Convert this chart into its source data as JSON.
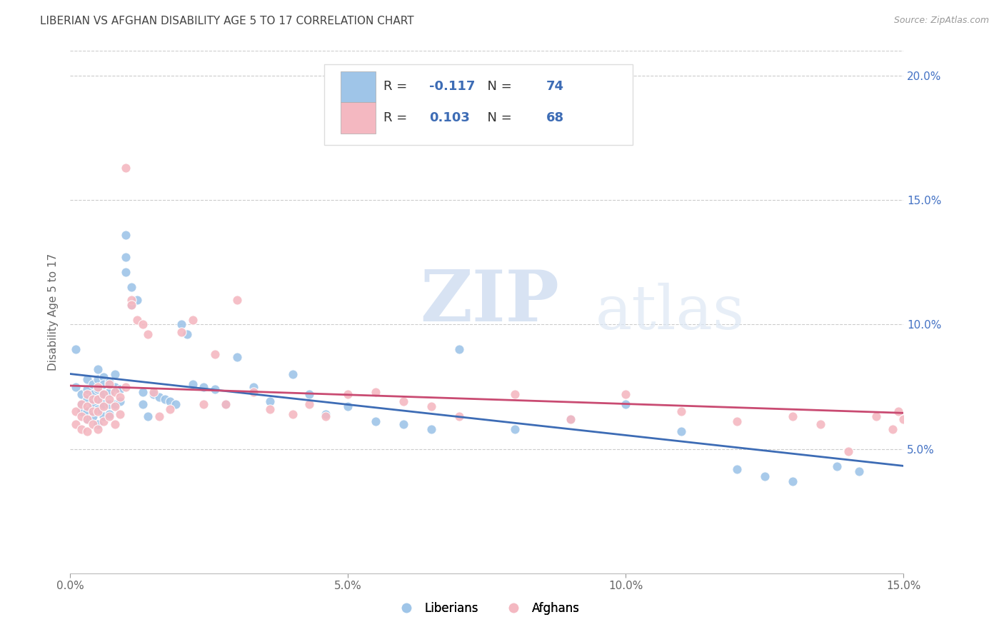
{
  "title": "LIBERIAN VS AFGHAN DISABILITY AGE 5 TO 17 CORRELATION CHART",
  "source": "Source: ZipAtlas.com",
  "ylabel": "Disability Age 5 to 17",
  "xlim": [
    0.0,
    0.15
  ],
  "ylim": [
    0.0,
    0.21
  ],
  "xticks": [
    0.0,
    0.05,
    0.1,
    0.15
  ],
  "xticklabels": [
    "0.0%",
    "5.0%",
    "10.0%",
    "15.0%"
  ],
  "yticks": [
    0.05,
    0.1,
    0.15,
    0.2
  ],
  "yticklabels": [
    "5.0%",
    "10.0%",
    "15.0%",
    "20.0%"
  ],
  "liberian_R": -0.117,
  "liberian_N": 74,
  "afghan_R": 0.103,
  "afghan_N": 68,
  "liberian_color": "#9fc5e8",
  "afghan_color": "#f4b8c1",
  "liberian_line_color": "#3d6cb5",
  "afghan_line_color": "#c94b72",
  "watermark_zip": "ZIP",
  "watermark_atlas": "atlas",
  "legend_label_liberian": "Liberians",
  "legend_label_afghan": "Afghans",
  "liberian_x": [
    0.001,
    0.001,
    0.002,
    0.002,
    0.002,
    0.003,
    0.003,
    0.003,
    0.003,
    0.003,
    0.004,
    0.004,
    0.004,
    0.004,
    0.005,
    0.005,
    0.005,
    0.005,
    0.005,
    0.005,
    0.006,
    0.006,
    0.006,
    0.006,
    0.006,
    0.007,
    0.007,
    0.007,
    0.007,
    0.008,
    0.008,
    0.008,
    0.009,
    0.009,
    0.01,
    0.01,
    0.01,
    0.011,
    0.011,
    0.012,
    0.013,
    0.013,
    0.014,
    0.015,
    0.016,
    0.017,
    0.018,
    0.019,
    0.02,
    0.021,
    0.022,
    0.024,
    0.026,
    0.028,
    0.03,
    0.033,
    0.036,
    0.04,
    0.043,
    0.046,
    0.05,
    0.055,
    0.06,
    0.065,
    0.07,
    0.08,
    0.09,
    0.1,
    0.11,
    0.12,
    0.125,
    0.13,
    0.138,
    0.142
  ],
  "liberian_y": [
    0.09,
    0.075,
    0.072,
    0.068,
    0.065,
    0.078,
    0.074,
    0.07,
    0.065,
    0.062,
    0.076,
    0.072,
    0.068,
    0.063,
    0.082,
    0.078,
    0.074,
    0.07,
    0.066,
    0.06,
    0.079,
    0.076,
    0.072,
    0.068,
    0.063,
    0.077,
    0.073,
    0.068,
    0.064,
    0.08,
    0.075,
    0.068,
    0.074,
    0.069,
    0.136,
    0.127,
    0.121,
    0.115,
    0.108,
    0.11,
    0.073,
    0.068,
    0.063,
    0.072,
    0.071,
    0.07,
    0.069,
    0.068,
    0.1,
    0.096,
    0.076,
    0.075,
    0.074,
    0.068,
    0.087,
    0.075,
    0.069,
    0.08,
    0.072,
    0.064,
    0.067,
    0.061,
    0.06,
    0.058,
    0.09,
    0.058,
    0.062,
    0.068,
    0.057,
    0.042,
    0.039,
    0.037,
    0.043,
    0.041
  ],
  "afghan_x": [
    0.001,
    0.001,
    0.002,
    0.002,
    0.002,
    0.003,
    0.003,
    0.003,
    0.003,
    0.004,
    0.004,
    0.004,
    0.005,
    0.005,
    0.005,
    0.005,
    0.006,
    0.006,
    0.006,
    0.007,
    0.007,
    0.007,
    0.008,
    0.008,
    0.008,
    0.009,
    0.009,
    0.01,
    0.01,
    0.011,
    0.011,
    0.012,
    0.013,
    0.014,
    0.015,
    0.016,
    0.018,
    0.02,
    0.022,
    0.024,
    0.026,
    0.028,
    0.03,
    0.033,
    0.036,
    0.04,
    0.043,
    0.046,
    0.05,
    0.055,
    0.06,
    0.065,
    0.07,
    0.08,
    0.09,
    0.1,
    0.11,
    0.12,
    0.13,
    0.135,
    0.14,
    0.145,
    0.148,
    0.149,
    0.15,
    0.151,
    0.152,
    0.153
  ],
  "afghan_y": [
    0.065,
    0.06,
    0.068,
    0.063,
    0.058,
    0.072,
    0.067,
    0.062,
    0.057,
    0.07,
    0.065,
    0.06,
    0.075,
    0.07,
    0.065,
    0.058,
    0.072,
    0.067,
    0.061,
    0.076,
    0.07,
    0.063,
    0.073,
    0.067,
    0.06,
    0.071,
    0.064,
    0.163,
    0.075,
    0.11,
    0.108,
    0.102,
    0.1,
    0.096,
    0.073,
    0.063,
    0.066,
    0.097,
    0.102,
    0.068,
    0.088,
    0.068,
    0.11,
    0.073,
    0.066,
    0.064,
    0.068,
    0.063,
    0.072,
    0.073,
    0.069,
    0.067,
    0.063,
    0.072,
    0.062,
    0.072,
    0.065,
    0.061,
    0.063,
    0.06,
    0.049,
    0.063,
    0.058,
    0.065,
    0.062,
    0.069,
    0.074,
    0.079
  ]
}
